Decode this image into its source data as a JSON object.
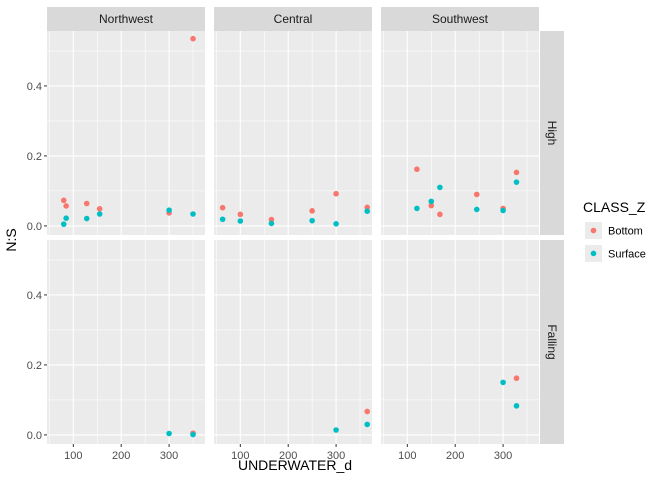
{
  "chart_data": {
    "type": "scatter",
    "title": "",
    "xlabel": "UNDERWATER_d",
    "ylabel": "N:S",
    "facet_cols": [
      "Northwest",
      "Central",
      "Southwest"
    ],
    "facet_rows": [
      "High",
      "Falling"
    ],
    "xlim": [
      45,
      375
    ],
    "ylim": [
      -0.026,
      0.557
    ],
    "x_ticks": [
      100,
      200,
      300
    ],
    "y_ticks": [
      0.0,
      0.2,
      0.4
    ],
    "x_tick_labels": [
      "100",
      "200",
      "300"
    ],
    "y_tick_labels": [
      "0.0",
      "0.2",
      "0.4"
    ],
    "grid": true,
    "legend": {
      "title": "CLASS_Z",
      "position": "right",
      "entries": [
        {
          "label": "Bottom",
          "color": "#F8766D"
        },
        {
          "label": "Surface",
          "color": "#00BFC4"
        }
      ]
    },
    "series": [
      {
        "name": "Bottom",
        "color": "#F8766D",
        "points": [
          {
            "col": "Northwest",
            "row": "High",
            "x": 80,
            "y": 0.073
          },
          {
            "col": "Northwest",
            "row": "High",
            "x": 85,
            "y": 0.057
          },
          {
            "col": "Northwest",
            "row": "High",
            "x": 128,
            "y": 0.064
          },
          {
            "col": "Northwest",
            "row": "High",
            "x": 155,
            "y": 0.049
          },
          {
            "col": "Northwest",
            "row": "High",
            "x": 300,
            "y": 0.037
          },
          {
            "col": "Northwest",
            "row": "High",
            "x": 350,
            "y": 0.535
          },
          {
            "col": "Central",
            "row": "High",
            "x": 63,
            "y": 0.052
          },
          {
            "col": "Central",
            "row": "High",
            "x": 100,
            "y": 0.033
          },
          {
            "col": "Central",
            "row": "High",
            "x": 165,
            "y": 0.018
          },
          {
            "col": "Central",
            "row": "High",
            "x": 250,
            "y": 0.043
          },
          {
            "col": "Central",
            "row": "High",
            "x": 300,
            "y": 0.092
          },
          {
            "col": "Central",
            "row": "High",
            "x": 365,
            "y": 0.053
          },
          {
            "col": "Southwest",
            "row": "High",
            "x": 120,
            "y": 0.162
          },
          {
            "col": "Southwest",
            "row": "High",
            "x": 150,
            "y": 0.058
          },
          {
            "col": "Southwest",
            "row": "High",
            "x": 168,
            "y": 0.033
          },
          {
            "col": "Southwest",
            "row": "High",
            "x": 245,
            "y": 0.09
          },
          {
            "col": "Southwest",
            "row": "High",
            "x": 300,
            "y": 0.05
          },
          {
            "col": "Southwest",
            "row": "High",
            "x": 328,
            "y": 0.153
          },
          {
            "col": "Northwest",
            "row": "Falling",
            "x": 350,
            "y": 0.005
          },
          {
            "col": "Central",
            "row": "Falling",
            "x": 365,
            "y": 0.067
          },
          {
            "col": "Southwest",
            "row": "Falling",
            "x": 328,
            "y": 0.162
          }
        ]
      },
      {
        "name": "Surface",
        "color": "#00BFC4",
        "points": [
          {
            "col": "Northwest",
            "row": "High",
            "x": 80,
            "y": 0.005
          },
          {
            "col": "Northwest",
            "row": "High",
            "x": 85,
            "y": 0.022
          },
          {
            "col": "Northwest",
            "row": "High",
            "x": 128,
            "y": 0.021
          },
          {
            "col": "Northwest",
            "row": "High",
            "x": 155,
            "y": 0.034
          },
          {
            "col": "Northwest",
            "row": "High",
            "x": 300,
            "y": 0.045
          },
          {
            "col": "Northwest",
            "row": "High",
            "x": 350,
            "y": 0.034
          },
          {
            "col": "Central",
            "row": "High",
            "x": 63,
            "y": 0.019
          },
          {
            "col": "Central",
            "row": "High",
            "x": 100,
            "y": 0.014
          },
          {
            "col": "Central",
            "row": "High",
            "x": 165,
            "y": 0.007
          },
          {
            "col": "Central",
            "row": "High",
            "x": 250,
            "y": 0.015
          },
          {
            "col": "Central",
            "row": "High",
            "x": 300,
            "y": 0.006
          },
          {
            "col": "Central",
            "row": "High",
            "x": 365,
            "y": 0.042
          },
          {
            "col": "Southwest",
            "row": "High",
            "x": 120,
            "y": 0.05
          },
          {
            "col": "Southwest",
            "row": "High",
            "x": 150,
            "y": 0.07
          },
          {
            "col": "Southwest",
            "row": "High",
            "x": 168,
            "y": 0.11
          },
          {
            "col": "Southwest",
            "row": "High",
            "x": 245,
            "y": 0.047
          },
          {
            "col": "Southwest",
            "row": "High",
            "x": 300,
            "y": 0.044
          },
          {
            "col": "Southwest",
            "row": "High",
            "x": 328,
            "y": 0.125
          },
          {
            "col": "Northwest",
            "row": "Falling",
            "x": 300,
            "y": 0.004
          },
          {
            "col": "Northwest",
            "row": "Falling",
            "x": 350,
            "y": 0.001
          },
          {
            "col": "Central",
            "row": "Falling",
            "x": 300,
            "y": 0.014
          },
          {
            "col": "Central",
            "row": "Falling",
            "x": 365,
            "y": 0.03
          },
          {
            "col": "Southwest",
            "row": "Falling",
            "x": 300,
            "y": 0.15
          },
          {
            "col": "Southwest",
            "row": "Falling",
            "x": 328,
            "y": 0.083
          }
        ]
      }
    ]
  }
}
